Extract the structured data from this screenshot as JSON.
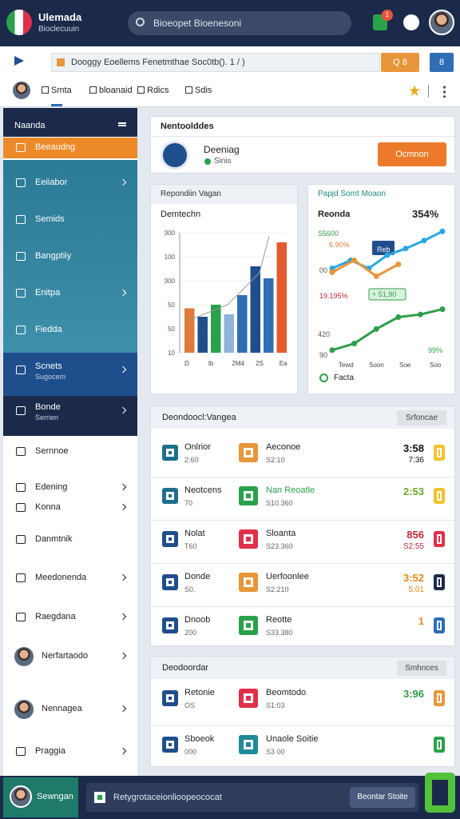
{
  "header": {
    "app_name": "Ulemada",
    "app_sub": "Bioclecuuin",
    "search": "Bioeopet Bioenesoni",
    "badge": "1"
  },
  "toolbar": {
    "address": "Dooggy Eoellems Fenetmthae Soc0tb(). 1 / )",
    "search_button": "Q 8",
    "blue_button": "8"
  },
  "tabs": [
    "Smta",
    "bloanaid",
    "Rdics",
    "Sdis"
  ],
  "sidebar": {
    "title": "Naanda",
    "items": [
      {
        "label": "Beeaudng",
        "section": "orange"
      },
      {
        "label": "Eeiiabor",
        "section": "teal",
        "arrow": true
      },
      {
        "label": "Semids",
        "section": "teal"
      },
      {
        "label": "Bangptiiy",
        "section": "teal"
      },
      {
        "label": "Enitpa",
        "section": "teal",
        "arrow": true
      },
      {
        "label": "Fiedda",
        "section": "teal"
      },
      {
        "label": "Scnets",
        "sub": "Sugocem",
        "section": "navy",
        "arrow": true
      },
      {
        "label": "Bonde",
        "sub": "Serrien",
        "section": "dark",
        "arrow": true
      },
      {
        "label": "Sernnoe",
        "section": "white"
      },
      {
        "label": "Edening",
        "section": "white",
        "arrow": true
      },
      {
        "label": "Konna",
        "section": "white",
        "arrow": true
      },
      {
        "label": "Danmtnik",
        "section": "white"
      },
      {
        "label": "Meedonenda",
        "section": "white",
        "arrow": true
      },
      {
        "label": "Raegdana",
        "section": "white",
        "arrow": true
      },
      {
        "label": "Nerfartaodo",
        "section": "white",
        "arrow": true,
        "avatar": true
      },
      {
        "label": "Nennagea",
        "section": "white",
        "arrow": true,
        "avatar": true
      },
      {
        "label": "Praggia",
        "section": "white",
        "arrow": true
      }
    ]
  },
  "profile_card": {
    "title": "Nentoolddes",
    "name": "Deeniag",
    "status": "Sinis",
    "button": "Ocmnon"
  },
  "bar_panel": {
    "title": "Repondiin Vagan",
    "subtitle": "Demtechn",
    "y_labels": [
      "300",
      "100",
      "300",
      "50",
      "50",
      "10"
    ],
    "x_labels": [
      "D",
      "Ib",
      "2M4",
      "2S",
      "Ea"
    ],
    "ylim": [
      0,
      100
    ],
    "bars": [
      {
        "value": 37,
        "color": "#e07a3a"
      },
      {
        "value": 30,
        "color": "#1f4e8c"
      },
      {
        "value": 40,
        "color": "#2aa14a"
      },
      {
        "value": 32,
        "color": "#8fb3d9"
      },
      {
        "value": 48,
        "color": "#2f6db5"
      },
      {
        "value": 72,
        "color": "#1f4e8c"
      },
      {
        "value": 62,
        "color": "#2f6db5"
      },
      {
        "value": 92,
        "color": "#e35a2e"
      }
    ]
  },
  "line_panel": {
    "title": "Papjd Somt Moaon",
    "subtitle": "Reonda",
    "headline": "354%",
    "labels": [
      {
        "text": "S5600",
        "color": "#2e9e48"
      },
      {
        "text": "6.90%",
        "color": "#e07a3a"
      },
      {
        "text": "00",
        "color": "#555555"
      },
      {
        "text": "19.195%",
        "color": "#c0283a"
      },
      {
        "text": "+ 51,90",
        "color": "#2e9e48"
      },
      {
        "text": "420",
        "color": "#555555"
      },
      {
        "text": "90",
        "color": "#555555"
      },
      {
        "text": "99%",
        "color": "#2e9e48"
      },
      {
        "text": "Reb",
        "color": "#ffffff"
      }
    ],
    "x_labels": [
      "Tewd",
      "Soon",
      "Soe",
      "Soo"
    ],
    "legend": "Facta",
    "ylim": [
      0,
      100
    ],
    "series": [
      {
        "color": "#29a8e0",
        "values": [
          67,
          73,
          67,
          77,
          82,
          88,
          95
        ]
      },
      {
        "color": "#e8963a",
        "values": [
          64,
          73,
          61,
          70
        ]
      },
      {
        "color": "#2e9e48",
        "values": [
          5,
          10,
          21,
          30,
          32,
          36
        ]
      }
    ]
  },
  "table": {
    "title": "Deondoocl:Vangea",
    "button": "Srfoncae",
    "rows": [
      {
        "icon_color": "#1f6f8b",
        "name": "Onlrior",
        "sub": "2:60",
        "icon2_color": "#e8963a",
        "name2": "Aeconoe",
        "name2_color": "#222222",
        "sub2": "S2:10",
        "value": "3:58",
        "value_sub": "7:36",
        "value_color": "#111111",
        "chip_color": "#f2c230"
      },
      {
        "icon_color": "#1f6f8b",
        "name": "Neotcens",
        "sub": "70",
        "icon2_color": "#2aa14a",
        "name2": "Nan Reoatle",
        "name2_color": "#2aa14a",
        "sub2": "S10.360",
        "value": "2:53",
        "value_color": "#6aa82a",
        "chip_color": "#f2c230"
      },
      {
        "icon_color": "#1f4e8c",
        "name": "Nolat",
        "sub": "T60",
        "icon2_color": "#e0304a",
        "name2": "Sloanta",
        "name2_color": "#222222",
        "sub2": "S23.360",
        "value": "856",
        "value_sub": "S2:55",
        "value_color": "#c0283a",
        "chip_color": "#e0304a"
      },
      {
        "icon_color": "#1f4e8c",
        "name": "Donde",
        "sub": "S0.",
        "icon2_color": "#e8963a",
        "name2": "Uerfoonlee",
        "name2_color": "#222222",
        "sub2": "S2:210",
        "value": "3:52",
        "value_sub": "5:01",
        "value_color": "#e08a1a",
        "chip_color": "#1b2a4a"
      },
      {
        "icon_color": "#1f4e8c",
        "name": "Dnoob",
        "sub": "200",
        "icon2_color": "#2aa14a",
        "name2": "Reotte",
        "name2_color": "#222222",
        "sub2": "S33.380",
        "value": "1",
        "value_color": "#e08a1a",
        "chip_color": "#2f6db5"
      }
    ]
  },
  "table2": {
    "title": "Deodoordar",
    "button": "Smhnces",
    "rows": [
      {
        "icon_color": "#1f4e8c",
        "name": "Retonie",
        "sub": "OS",
        "icon2_color": "#e0304a",
        "name2": "Beomtodo",
        "name2_color": "#222222",
        "sub2": "S1:03",
        "value": "3:96",
        "value_color": "#2e9e48",
        "chip_color": "#e8963a"
      },
      {
        "icon_color": "#1f4e8c",
        "name": "Sboeok",
        "sub": "000",
        "icon2_color": "#1f8b9a",
        "name2": "Unaole Soitie",
        "name2_color": "#222222",
        "sub2": "S3 00",
        "chip_color": "#2aa14a"
      }
    ]
  },
  "footer": {
    "user": "Sewngan",
    "input": "Retygrotaceionlioopeococat",
    "button": "Beontar Stoite"
  }
}
